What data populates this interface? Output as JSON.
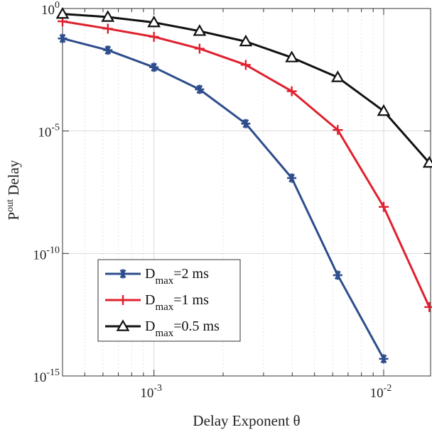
{
  "chart_data": {
    "type": "line",
    "xscale": "log",
    "yscale": "log",
    "xlim": [
      0.0004,
      0.016
    ],
    "ylim": [
      1e-15,
      1
    ],
    "grid": true,
    "legend_position": "bottom-left",
    "xlabel": "Delay Exponent θ",
    "ylabel": {
      "base": "P",
      "sup": "out",
      "rest": " Delay"
    },
    "x_ticks": [
      {
        "value": 0.001,
        "base": "10",
        "exp": "-3"
      },
      {
        "value": 0.01,
        "base": "10",
        "exp": "-2"
      }
    ],
    "y_ticks": [
      {
        "value": 1,
        "base": "10",
        "exp": "0"
      },
      {
        "value": 1e-05,
        "base": "10",
        "exp": "-5"
      },
      {
        "value": 1e-10,
        "base": "10",
        "exp": "-10"
      },
      {
        "value": 1e-15,
        "base": "10",
        "exp": "-15"
      }
    ],
    "x": [
      0.0004,
      0.00063,
      0.001,
      0.00158,
      0.00251,
      0.00398,
      0.00631,
      0.01,
      0.0158
    ],
    "series": [
      {
        "legend": {
          "base": "D",
          "sub": "max",
          "rest": "=2 ms"
        },
        "color": "#2e4d8c",
        "marker": "asterisk",
        "values": [
          0.06,
          0.02,
          0.004,
          0.0005,
          2e-05,
          1.2e-07,
          1.3e-11,
          5e-15,
          null
        ]
      },
      {
        "legend": {
          "base": "D",
          "sub": "max",
          "rest": "=1 ms"
        },
        "color": "#e0202e",
        "marker": "plus",
        "values": [
          0.3,
          0.15,
          0.07,
          0.023,
          0.005,
          0.00042,
          1.1e-05,
          8e-09,
          6.5e-13
        ]
      },
      {
        "legend": {
          "base": "D",
          "sub": "max",
          "rest": "=0.5 ms"
        },
        "color": "#111111",
        "marker": "triangle",
        "values": [
          0.6,
          0.45,
          0.27,
          0.12,
          0.045,
          0.01,
          0.00155,
          6.5e-05,
          5e-07
        ]
      }
    ]
  }
}
